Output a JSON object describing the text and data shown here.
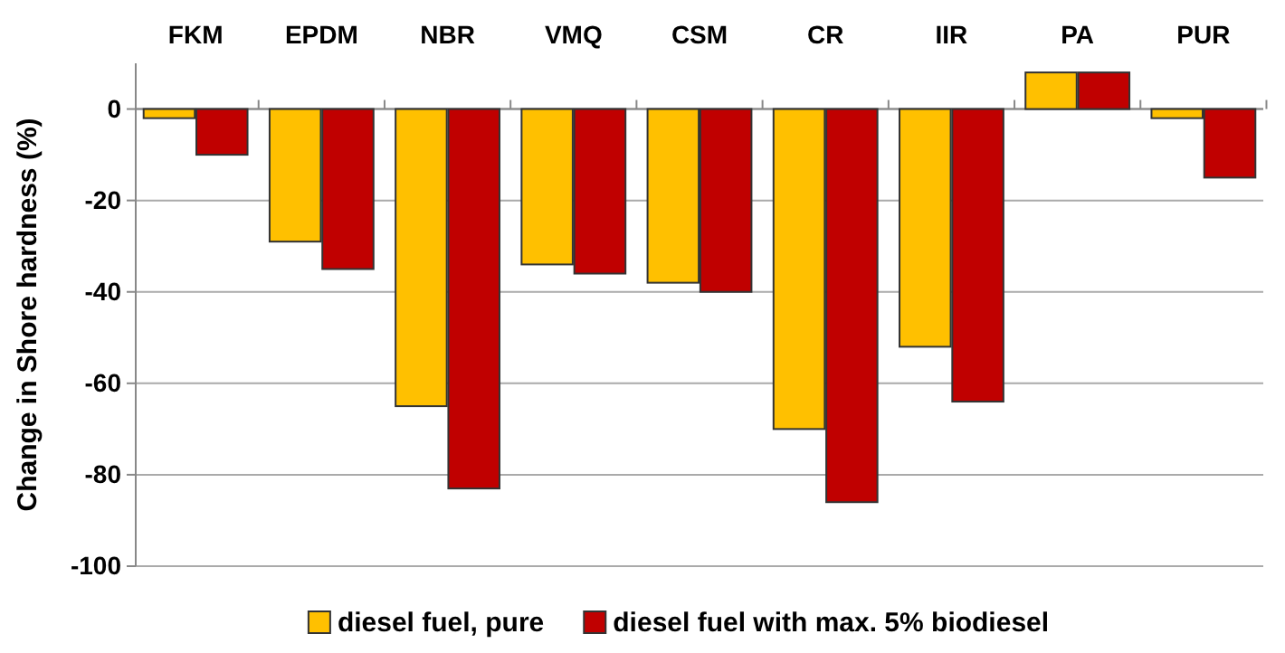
{
  "chart_data": {
    "type": "bar",
    "ylabel": "Change in Shore hardness (%)",
    "categories": [
      "FKM",
      "EPDM",
      "NBR",
      "VMQ",
      "CSM",
      "CR",
      "IIR",
      "PA",
      "PUR"
    ],
    "series": [
      {
        "name": "diesel fuel, pure",
        "color": "#ffc000",
        "values": [
          -2,
          -29,
          -65,
          -34,
          -38,
          -70,
          -52,
          8,
          -2
        ]
      },
      {
        "name": "diesel fuel with max. 5% biodiesel",
        "color": "#c00000",
        "values": [
          -10,
          -35,
          -83,
          -36,
          -40,
          -86,
          -64,
          8,
          -15
        ]
      }
    ],
    "ylim": [
      -100,
      10
    ],
    "yticks": [
      0,
      -20,
      -40,
      -60,
      -80,
      -100
    ],
    "grid": "y",
    "legend": "bottom"
  }
}
